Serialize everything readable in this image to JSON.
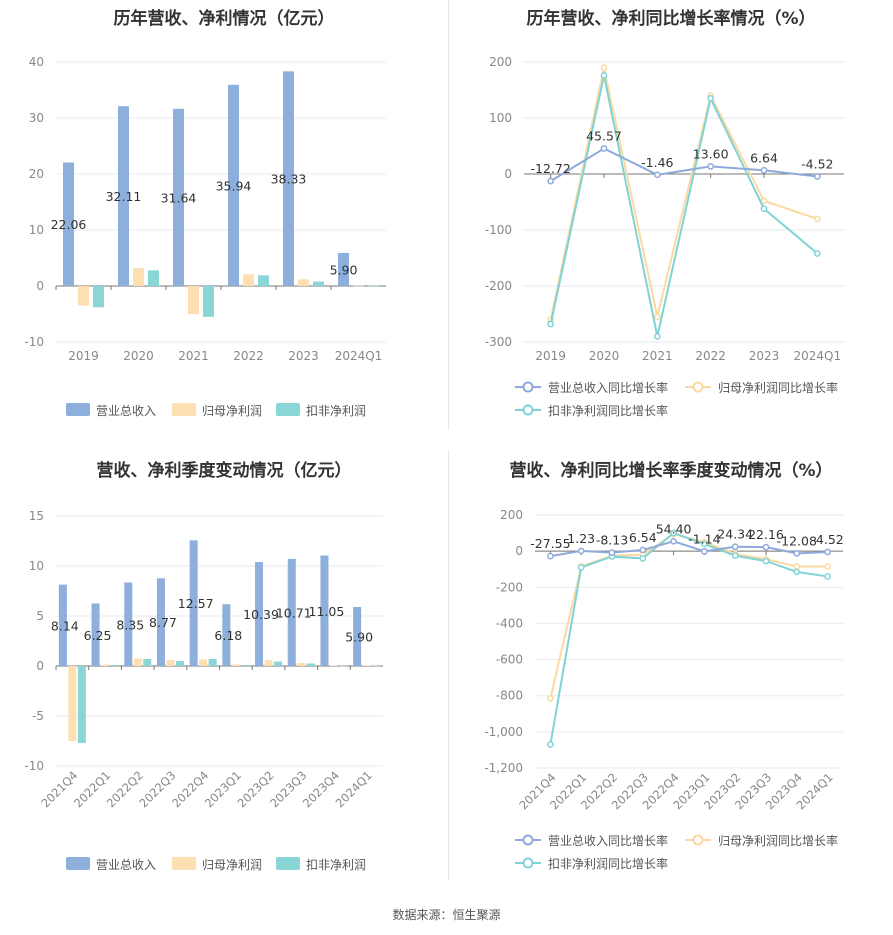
{
  "source_label": "数据来源：恒生聚源",
  "colors": {
    "revenue": "#8eaedc",
    "parent_profit": "#fddfb1",
    "deducted_profit": "#8ad6d6",
    "rev_line": "#8eaadc",
    "parent_line": "#fcd9a0",
    "deducted_line": "#7fd3d6",
    "grid": "#e6ebf2",
    "axis_text": "#888888"
  },
  "chart_data": [
    {
      "type": "bar",
      "title": "历年营收、净利情况（亿元）",
      "categories": [
        "2019",
        "2020",
        "2021",
        "2022",
        "2023",
        "2024Q1"
      ],
      "ylim": [
        -10,
        40
      ],
      "yticks": [
        "40",
        "30",
        "20",
        "10",
        "0",
        "-10"
      ],
      "series": [
        {
          "name": "营业总收入",
          "values": [
            22.06,
            32.11,
            31.64,
            35.94,
            38.33,
            5.9
          ],
          "labels": [
            "22.06",
            "32.11",
            "31.64",
            "35.94",
            "38.33",
            "5.90"
          ]
        },
        {
          "name": "归母净利润",
          "values": [
            -3.5,
            3.2,
            -5.0,
            2.1,
            1.2,
            0.05
          ]
        },
        {
          "name": "扣非净利润",
          "values": [
            -3.8,
            2.8,
            -5.5,
            1.9,
            0.8,
            0.05
          ]
        }
      ],
      "legend": "bottom"
    },
    {
      "type": "line",
      "title": "历年营收、净利同比增长率情况（%）",
      "categories": [
        "2019",
        "2020",
        "2021",
        "2022",
        "2023",
        "2024Q1"
      ],
      "ylim": [
        -300,
        200
      ],
      "yticks": [
        "200",
        "100",
        "0",
        "-100",
        "-200",
        "-300"
      ],
      "series": [
        {
          "name": "营业总收入同比增长率",
          "values": [
            -12.72,
            45.57,
            -1.46,
            13.6,
            6.64,
            -4.52
          ],
          "labels": [
            "-12.72",
            "45.57",
            "-1.46",
            "13.60",
            "6.64",
            "-4.52"
          ]
        },
        {
          "name": "归母净利润同比增长率",
          "values": [
            -260,
            190,
            -255,
            140,
            -48,
            -80
          ]
        },
        {
          "name": "扣非净利润同比增长率",
          "values": [
            -268,
            176,
            -290,
            135,
            -62,
            -142
          ]
        }
      ],
      "legend": "bottom"
    },
    {
      "type": "bar",
      "title": "营收、净利季度变动情况（亿元）",
      "categories": [
        "2021Q4",
        "2022Q1",
        "2022Q2",
        "2022Q3",
        "2022Q4",
        "2023Q1",
        "2023Q2",
        "2023Q3",
        "2023Q4",
        "2024Q1"
      ],
      "ylim": [
        -10,
        15
      ],
      "yticks": [
        "15",
        "10",
        "5",
        "0",
        "-5",
        "-10"
      ],
      "series": [
        {
          "name": "营业总收入",
          "values": [
            8.14,
            6.25,
            8.35,
            8.77,
            12.57,
            6.18,
            10.39,
            10.71,
            11.05,
            5.9
          ],
          "labels": [
            "8.14",
            "6.25",
            "8.35",
            "8.77",
            "12.57",
            "6.18",
            "10.39",
            "10.71",
            "11.05",
            "5.90"
          ]
        },
        {
          "name": "归母净利润",
          "values": [
            -7.5,
            0.15,
            0.75,
            0.6,
            0.65,
            0.15,
            0.6,
            0.3,
            0.05,
            0.05
          ]
        },
        {
          "name": "扣非净利润",
          "values": [
            -7.7,
            0.1,
            0.7,
            0.5,
            0.7,
            0.1,
            0.45,
            0.25,
            0.02,
            0.03
          ]
        }
      ],
      "legend": "bottom"
    },
    {
      "type": "line",
      "title": "营收、净利同比增长率季度变动情况（%）",
      "categories": [
        "2021Q4",
        "2022Q1",
        "2022Q2",
        "2022Q3",
        "2022Q4",
        "2023Q1",
        "2023Q2",
        "2023Q3",
        "2023Q4",
        "2024Q1"
      ],
      "ylim": [
        -1200,
        200
      ],
      "yticks": [
        "200",
        "0",
        "-200",
        "-400",
        "-600",
        "-800",
        "-1,000",
        "-1,200"
      ],
      "series": [
        {
          "name": "营业总收入同比增长率",
          "values": [
            -27.55,
            1.23,
            -8.13,
            6.54,
            54.4,
            -1.14,
            24.34,
            22.16,
            -12.08,
            -4.52
          ],
          "labels": [
            "-27.55",
            "1.23",
            "-8.13",
            "6.54",
            "54.40",
            "-1.14",
            "24.34",
            "22.16",
            "-12.08",
            "-4.52"
          ]
        },
        {
          "name": "归母净利润同比增长率",
          "values": [
            -815,
            -85,
            -25,
            -20,
            95,
            50,
            -15,
            -45,
            -85,
            -85
          ]
        },
        {
          "name": "扣非净利润同比增长率",
          "values": [
            -1070,
            -90,
            -30,
            -40,
            100,
            40,
            -25,
            -55,
            -115,
            -140
          ]
        }
      ],
      "legend": "bottom"
    }
  ]
}
